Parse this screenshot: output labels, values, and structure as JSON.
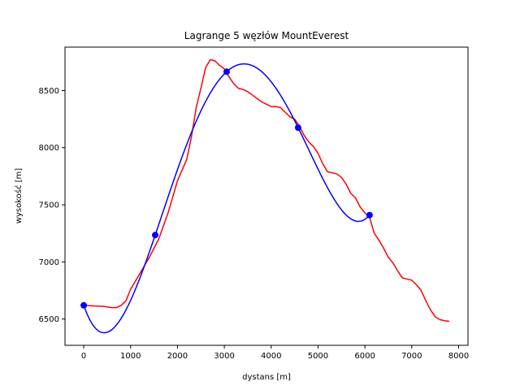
{
  "chart_data": {
    "type": "line",
    "title": "Lagrange 5 węzłów MountEverest",
    "xlabel": "dystans [m]",
    "ylabel": "wysokość [m]",
    "xlim": [
      -400,
      8200
    ],
    "ylim": [
      6270,
      8880
    ],
    "xticks": [
      0,
      1000,
      2000,
      3000,
      4000,
      5000,
      6000,
      7000,
      8000
    ],
    "yticks": [
      6500,
      7000,
      7500,
      8000,
      8500
    ],
    "grid": false,
    "legend": "none",
    "colors": {
      "profile": "#ff0000",
      "interpolation": "#0000ff",
      "nodes": "#0000ff"
    },
    "series": [
      {
        "role": "profile",
        "x": [
          0,
          200,
          400,
          600,
          700,
          800,
          900,
          1000,
          1200,
          1400,
          1600,
          1800,
          2000,
          2200,
          2300,
          2400,
          2500,
          2600,
          2700,
          2800,
          2900,
          3000,
          3100,
          3200,
          3300,
          3400,
          3500,
          3600,
          3700,
          3800,
          3900,
          4000,
          4100,
          4200,
          4300,
          4400,
          4500,
          4600,
          4700,
          4800,
          4900,
          5000,
          5100,
          5200,
          5300,
          5400,
          5500,
          5600,
          5700,
          5800,
          5900,
          6000,
          6100,
          6200,
          6300,
          6400,
          6500,
          6600,
          6700,
          6800,
          6900,
          7000,
          7100,
          7200,
          7300,
          7400,
          7500,
          7600,
          7700,
          7800
        ],
        "y": [
          6620,
          6615,
          6612,
          6600,
          6600,
          6620,
          6660,
          6760,
          6900,
          7040,
          7200,
          7430,
          7710,
          7900,
          8100,
          8350,
          8520,
          8700,
          8770,
          8760,
          8720,
          8690,
          8620,
          8560,
          8520,
          8510,
          8490,
          8460,
          8430,
          8400,
          8380,
          8360,
          8360,
          8350,
          8310,
          8270,
          8250,
          8190,
          8110,
          8050,
          8010,
          7950,
          7860,
          7790,
          7780,
          7770,
          7740,
          7680,
          7600,
          7560,
          7480,
          7430,
          7390,
          7250,
          7190,
          7120,
          7040,
          6990,
          6920,
          6860,
          6850,
          6840,
          6800,
          6750,
          6660,
          6580,
          6520,
          6495,
          6485,
          6480
        ]
      },
      {
        "role": "interpolation",
        "nodes_x": [
          0,
          1525,
          3050,
          4575,
          6100
        ],
        "nodes_y": [
          6620,
          7235,
          8665,
          8175,
          7410
        ],
        "x_range": [
          0,
          6100
        ]
      }
    ]
  }
}
